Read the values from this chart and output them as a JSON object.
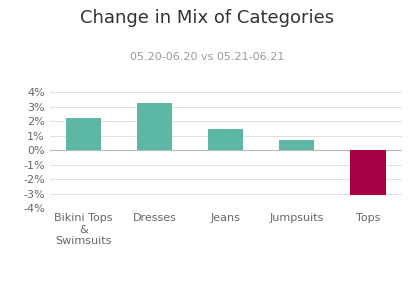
{
  "title": "Change in Mix of Categories",
  "subtitle": "05.20-06.20 vs 05.21-06.21",
  "categories": [
    "Bikini Tops\n&\nSwimsuits",
    "Dresses",
    "Jeans",
    "Jumpsuits",
    "Tops"
  ],
  "values": [
    0.022,
    0.033,
    0.015,
    0.007,
    -0.031
  ],
  "bar_colors": [
    "#5cb8a5",
    "#5cb8a5",
    "#5cb8a5",
    "#5cb8a5",
    "#a50044"
  ],
  "ylim": [
    -0.04,
    0.04
  ],
  "yticks": [
    -0.04,
    -0.03,
    -0.02,
    -0.01,
    0.0,
    0.01,
    0.02,
    0.03,
    0.04
  ],
  "background_color": "#ffffff",
  "title_fontsize": 13,
  "subtitle_fontsize": 8,
  "tick_fontsize": 8,
  "grid_color": "#e0e0e0",
  "bar_width": 0.5
}
